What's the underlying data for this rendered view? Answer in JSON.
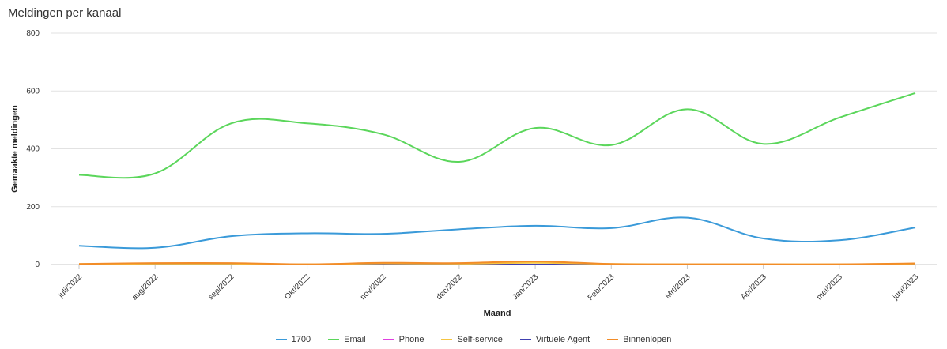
{
  "chart_data": {
    "type": "line",
    "title": "Meldingen per kanaal",
    "xlabel": "Maand",
    "ylabel": "Gemaakte meldingen",
    "ylim": [
      0,
      800
    ],
    "yticks": [
      0,
      200,
      400,
      600,
      800
    ],
    "grid": true,
    "legend_position": "bottom",
    "categories": [
      "juli/2022",
      "aug/2022",
      "sep/2022",
      "Okt/2022",
      "nov/2022",
      "dec/2022",
      "Jan/2023",
      "Feb/2023",
      "Mrt/2023",
      "Apr/2023",
      "mei/2023",
      "juni/2023"
    ],
    "series": [
      {
        "name": "1700",
        "color": "#3a9ad9",
        "values": [
          65,
          58,
          98,
          108,
          106,
          122,
          134,
          126,
          162,
          90,
          84,
          128
        ]
      },
      {
        "name": "Email",
        "color": "#5bd65b",
        "values": [
          310,
          315,
          488,
          488,
          450,
          355,
          472,
          413,
          537,
          417,
          508,
          593
        ]
      },
      {
        "name": "Phone",
        "color": "#e040e0",
        "values": [
          0,
          0,
          0,
          0,
          0,
          0,
          0,
          0,
          0,
          0,
          0,
          0
        ]
      },
      {
        "name": "Self-service",
        "color": "#f5c542",
        "values": [
          2,
          3,
          3,
          1,
          4,
          3,
          6,
          2,
          1,
          1,
          1,
          3
        ]
      },
      {
        "name": "Virtuele Agent",
        "color": "#4040b0",
        "values": [
          0,
          0,
          0,
          0,
          0,
          0,
          0,
          0,
          0,
          0,
          0,
          0
        ]
      },
      {
        "name": "Binnenlopen",
        "color": "#f28c28",
        "values": [
          2,
          5,
          5,
          1,
          6,
          5,
          11,
          2,
          1,
          1,
          1,
          4
        ]
      }
    ]
  }
}
